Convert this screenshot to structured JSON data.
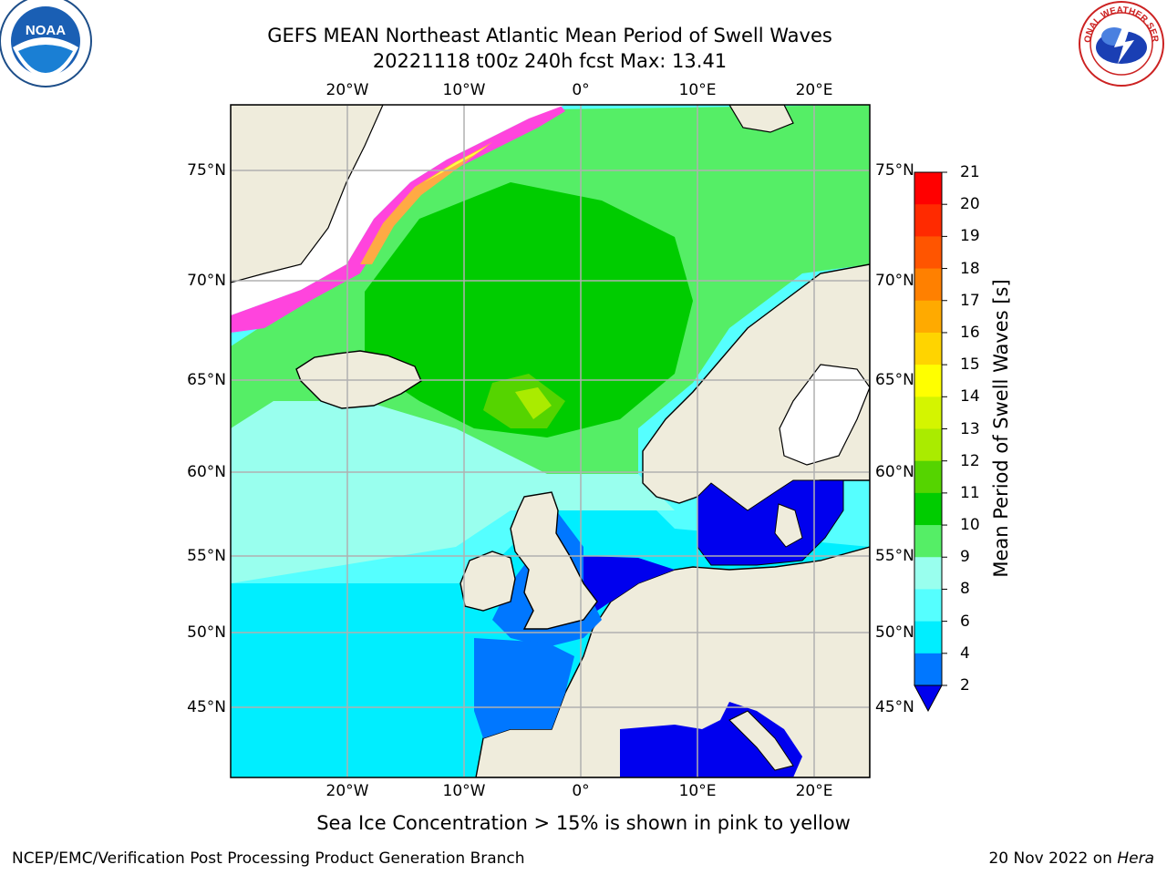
{
  "title_line1": "GEFS MEAN Northeast Atlantic Mean Period of Swell Waves",
  "title_line2": "20221118 t00z 240h fcst   Max: 13.41",
  "logos": {
    "left": "noaa-logo",
    "right": "national-weather-service-logo",
    "left_text": "NOAA",
    "right_text": "NATIONAL WEATHER SERVICE"
  },
  "lon_labels": [
    "20°W",
    "10°W",
    "0°",
    "10°E",
    "20°E"
  ],
  "lat_labels": [
    "75°N",
    "70°N",
    "65°N",
    "60°N",
    "55°N",
    "50°N",
    "45°N"
  ],
  "colorbar": {
    "title": "Mean Period of Swell Waves [s]",
    "ticks": [
      "21",
      "20",
      "19",
      "18",
      "17",
      "16",
      "15",
      "14",
      "13",
      "12",
      "11",
      "10",
      "9",
      "8",
      "6",
      "4",
      "2"
    ],
    "colors": [
      "#ff0000",
      "#ff2a00",
      "#ff5500",
      "#ff8000",
      "#ffaa00",
      "#ffd400",
      "#ffff00",
      "#d4f500",
      "#aaeb00",
      "#55d400",
      "#00cc00",
      "#55ee66",
      "#99ffee",
      "#55ffff",
      "#00eeff",
      "#0077ff"
    ],
    "under_color": "#0000ee"
  },
  "footnote": "Sea Ice Concentration > 15% is shown in pink to yellow",
  "footer_left": "NCEP/EMC/Verification Post Processing Product Generation Branch",
  "footer_date": "20 Nov 2022 on",
  "footer_host": "Hera"
}
